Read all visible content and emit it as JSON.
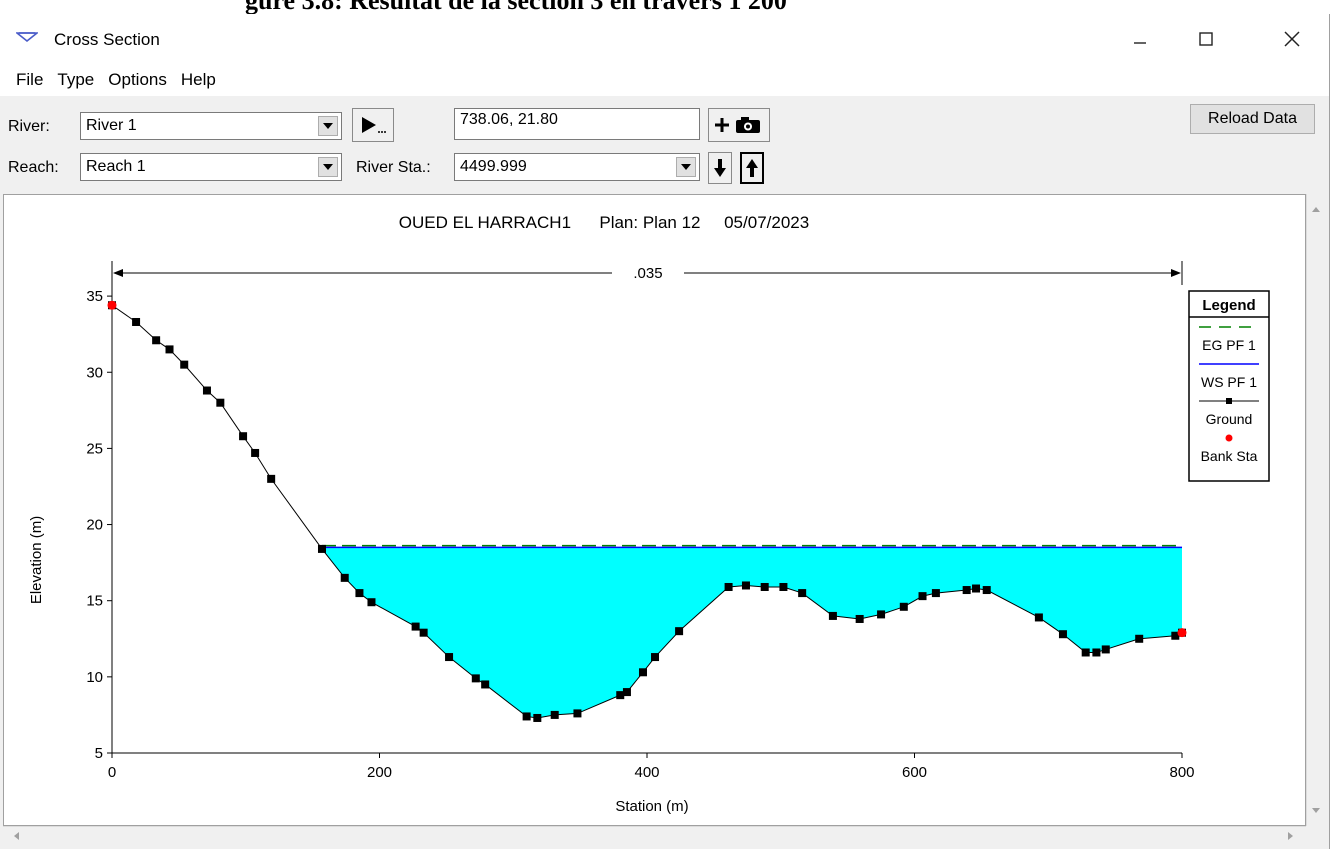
{
  "caption_partial": "gure 3.8: Résultat de la section 3 en travers 1 200",
  "window": {
    "title": "Cross Section"
  },
  "menu": [
    "File",
    "Type",
    "Options",
    "Help"
  ],
  "toolbar": {
    "river_label": "River:",
    "river_value": "River 1",
    "reach_label": "Reach:",
    "reach_value": "Reach 1",
    "coord_readout": "738.06, 21.80",
    "river_sta_label": "River Sta.:",
    "river_sta_value": "4499.999",
    "reload_label": "Reload Data"
  },
  "chart_data": {
    "type": "line",
    "title": "OUED EL HARRACH1      Plan: Plan 12     05/07/2023",
    "xlabel": "Station (m)",
    "ylabel": "Elevation (m)",
    "xlim": [
      0,
      800
    ],
    "ylim": [
      5,
      37
    ],
    "xticks": [
      0,
      200,
      400,
      600,
      800
    ],
    "yticks": [
      5,
      10,
      15,
      20,
      25,
      30,
      35
    ],
    "manning_n": ".035",
    "water_surface": 18.5,
    "energy_grade": 18.55,
    "legend": {
      "title": "Legend",
      "entries": [
        "EG PF 1",
        "WS PF 1",
        "Ground",
        "Bank Sta"
      ],
      "position": "right"
    },
    "ground": {
      "x": [
        0,
        18,
        33,
        43,
        54,
        71,
        81,
        98,
        107,
        119,
        157,
        174,
        185,
        194,
        227,
        233,
        252,
        272,
        279,
        310,
        318,
        331,
        348,
        380,
        385,
        397,
        406,
        424,
        461,
        474,
        488,
        502,
        516,
        539,
        559,
        575,
        592,
        606,
        616,
        639,
        646,
        654,
        693,
        711,
        728,
        736,
        743,
        768,
        795,
        800
      ],
      "y": [
        34.4,
        33.3,
        32.1,
        31.5,
        30.5,
        28.8,
        28.0,
        25.8,
        24.7,
        23.0,
        18.4,
        16.5,
        15.5,
        14.9,
        13.3,
        12.9,
        11.3,
        9.9,
        9.5,
        7.4,
        7.3,
        7.5,
        7.6,
        8.8,
        9.0,
        10.3,
        11.3,
        13.0,
        15.9,
        16.0,
        15.9,
        15.9,
        15.5,
        14.0,
        13.8,
        14.1,
        14.6,
        15.3,
        15.5,
        15.7,
        15.8,
        15.7,
        13.9,
        12.8,
        11.6,
        11.6,
        11.8,
        12.5,
        12.7,
        12.9
      ]
    },
    "bank_stations": [
      {
        "x": 0,
        "y": 34.4
      },
      {
        "x": 800,
        "y": 12.9
      }
    ],
    "colors": {
      "water_fill": "#00ffff",
      "ws_line": "#0000ff",
      "eg_line": "#008000",
      "ground": "#000000",
      "bank": "#ff0000"
    }
  }
}
